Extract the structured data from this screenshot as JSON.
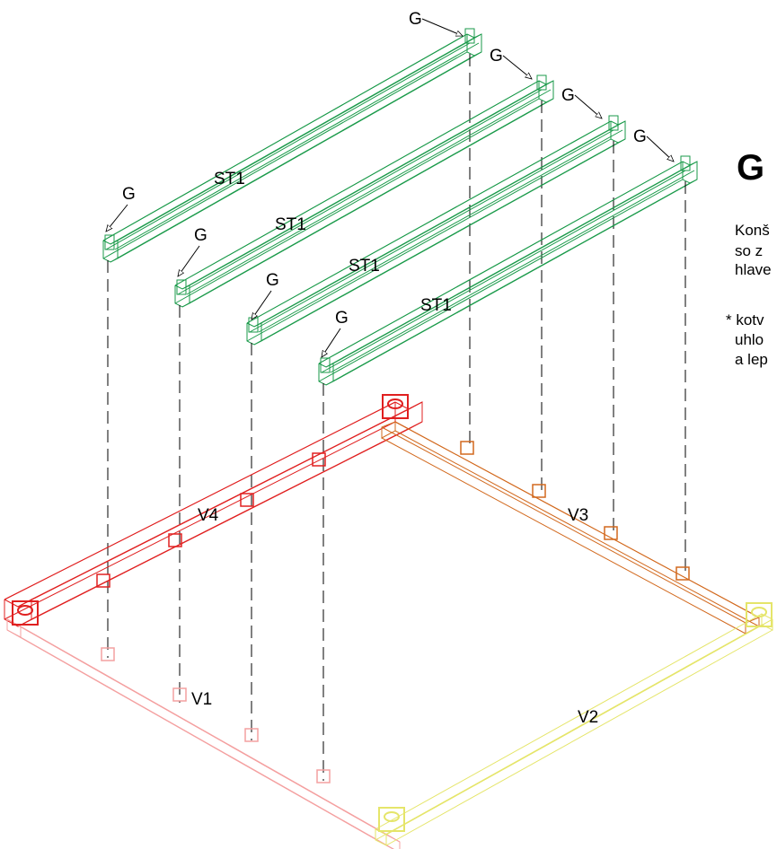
{
  "heading": "G",
  "beam_labels": [
    "ST1",
    "ST1",
    "ST1",
    "ST1"
  ],
  "connector_labels": [
    "G",
    "G",
    "G",
    "G",
    "G",
    "G",
    "G",
    "G"
  ],
  "frame_labels": [
    "V1",
    "V2",
    "V3",
    "V4"
  ],
  "note_lines": [
    "Konš",
    "so z",
    "hlave",
    "* kotv",
    "uhlo",
    "a lep"
  ]
}
